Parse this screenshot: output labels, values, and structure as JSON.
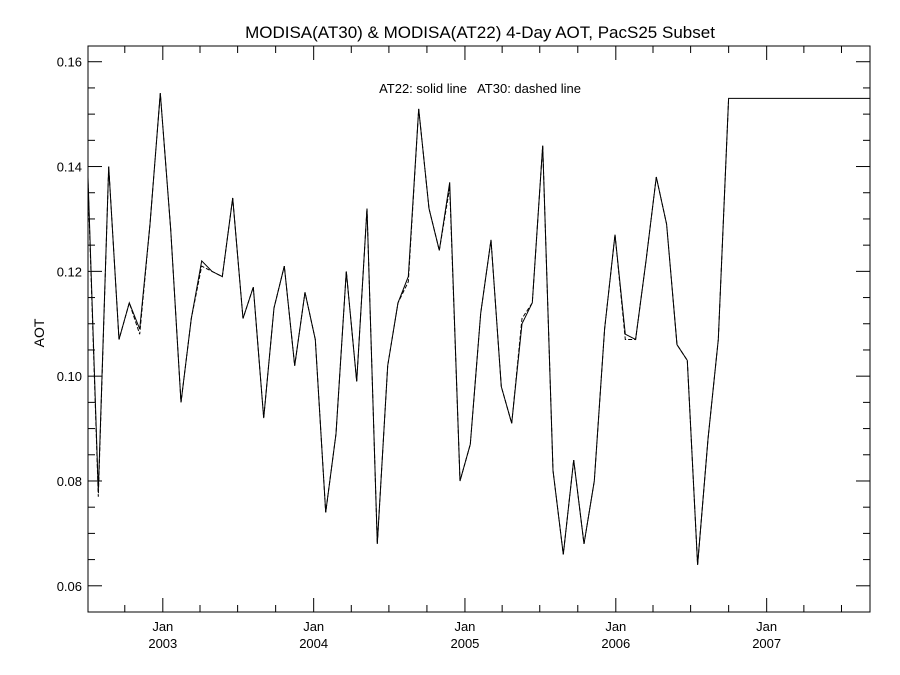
{
  "chart_data": {
    "type": "line",
    "title": "MODISA(AT30) & MODISA(AT22) 4-Day AOT, PacS25 Subset",
    "ylabel": "AOT",
    "xlabel": "",
    "annotation": "AT22: solid line   AT30: dashed line",
    "xlim": [
      "2002-07-04",
      "2007-09-08"
    ],
    "ylim": [
      0.055,
      0.163
    ],
    "y_ticks": [
      0.06,
      0.08,
      0.1,
      0.12,
      0.14,
      0.16
    ],
    "y_tick_labels": [
      "0.06",
      "0.08",
      "0.10",
      "0.12",
      "0.14",
      "0.16"
    ],
    "x_ticks": [
      {
        "date": "2003-01-01",
        "month": "Jan",
        "year": "2003"
      },
      {
        "date": "2004-01-01",
        "month": "Jan",
        "year": "2004"
      },
      {
        "date": "2005-01-01",
        "month": "Jan",
        "year": "2005"
      },
      {
        "date": "2006-01-01",
        "month": "Jan",
        "year": "2006"
      },
      {
        "date": "2007-01-01",
        "month": "Jan",
        "year": "2007"
      }
    ],
    "grid": false,
    "series": [
      {
        "name": "AT22",
        "style": "solid",
        "color": "#000000",
        "x": [
          "2002-07-04",
          "2002-07-29",
          "2002-08-23",
          "2002-09-17",
          "2002-10-12",
          "2002-11-06",
          "2002-12-01",
          "2002-12-26",
          "2003-01-20",
          "2003-02-14",
          "2003-03-11",
          "2003-04-05",
          "2003-04-30",
          "2003-05-25",
          "2003-06-19",
          "2003-07-14",
          "2003-08-08",
          "2003-09-02",
          "2003-09-27",
          "2003-10-22",
          "2003-11-16",
          "2003-12-11",
          "2004-01-05",
          "2004-01-30",
          "2004-02-24",
          "2004-03-20",
          "2004-04-14",
          "2004-05-09",
          "2004-06-03",
          "2004-06-28",
          "2004-07-23",
          "2004-08-17",
          "2004-09-11",
          "2004-10-06",
          "2004-10-31",
          "2004-11-25",
          "2004-12-20",
          "2005-01-14",
          "2005-02-08",
          "2005-03-05",
          "2005-03-30",
          "2005-04-24",
          "2005-05-19",
          "2005-06-13",
          "2005-07-08",
          "2005-08-02",
          "2005-08-27",
          "2005-09-21",
          "2005-10-16",
          "2005-11-10",
          "2005-12-05",
          "2005-12-30",
          "2006-01-24",
          "2006-02-18",
          "2006-03-15",
          "2006-04-09",
          "2006-05-04",
          "2006-05-29",
          "2006-06-23",
          "2006-07-18",
          "2006-08-12",
          "2006-09-06",
          "2006-10-01",
          "2006-10-26",
          "2006-11-20",
          "2006-12-15",
          "2007-01-09",
          "2007-02-03",
          "2007-02-28",
          "2007-03-25",
          "2007-04-19",
          "2007-05-14",
          "2007-06-08",
          "2007-07-03",
          "2007-07-28",
          "2007-08-22",
          "2007-09-08"
        ],
        "values": [
          0.138,
          0.078,
          0.14,
          0.107,
          0.114,
          0.109,
          0.129,
          0.154,
          0.128,
          0.095,
          0.111,
          0.122,
          0.12,
          0.119,
          0.134,
          0.111,
          0.117,
          0.092,
          0.113,
          0.121,
          0.102,
          0.116,
          0.107,
          0.074,
          0.089,
          0.12,
          0.099,
          0.132,
          0.068,
          0.102,
          0.114,
          0.119,
          0.151,
          0.132,
          0.124,
          0.137,
          0.08,
          0.087,
          0.112,
          0.126,
          0.098,
          0.091,
          0.11,
          0.114,
          0.144,
          0.082,
          0.066,
          0.084,
          0.068,
          0.08,
          0.109,
          0.127,
          0.108,
          0.107,
          0.122,
          0.138,
          0.129,
          0.106,
          0.103,
          0.064,
          0.088,
          0.107,
          0.153,
          0.153,
          0.153,
          0.153,
          0.153,
          0.153,
          0.153,
          0.153,
          0.153,
          0.153,
          0.153,
          0.153,
          0.153,
          0.153,
          0.153
        ]
      },
      {
        "name": "AT30",
        "style": "dashed",
        "color": "#000000",
        "x": [
          "2002-07-04",
          "2002-07-29",
          "2002-08-23",
          "2002-09-17",
          "2002-10-12",
          "2002-11-06",
          "2002-12-01",
          "2002-12-26",
          "2003-01-20",
          "2003-02-14",
          "2003-03-11",
          "2003-04-05",
          "2003-04-30",
          "2003-05-25",
          "2003-06-19",
          "2003-07-14",
          "2003-08-08",
          "2003-09-02",
          "2003-09-27",
          "2003-10-22",
          "2003-11-16",
          "2003-12-11",
          "2004-01-05",
          "2004-01-30",
          "2004-02-24",
          "2004-03-20",
          "2004-04-14",
          "2004-05-09",
          "2004-06-03",
          "2004-06-28",
          "2004-07-23",
          "2004-08-17",
          "2004-09-11",
          "2004-10-06",
          "2004-10-31",
          "2004-11-25",
          "2004-12-20",
          "2005-01-14",
          "2005-02-08",
          "2005-03-05",
          "2005-03-30",
          "2005-04-24",
          "2005-05-19",
          "2005-06-13",
          "2005-07-08",
          "2005-08-02",
          "2005-08-27",
          "2005-09-21",
          "2005-10-16",
          "2005-11-10",
          "2005-12-05",
          "2005-12-30",
          "2006-01-24",
          "2006-02-18",
          "2006-03-15",
          "2006-04-09",
          "2006-05-04",
          "2006-05-29",
          "2006-06-23",
          "2006-07-18",
          "2006-08-12",
          "2006-09-06",
          "2006-10-01"
        ],
        "values": [
          0.137,
          0.077,
          0.14,
          0.107,
          0.114,
          0.108,
          0.129,
          0.154,
          0.128,
          0.095,
          0.111,
          0.121,
          0.12,
          0.119,
          0.134,
          0.111,
          0.117,
          0.092,
          0.113,
          0.121,
          0.102,
          0.116,
          0.107,
          0.074,
          0.089,
          0.12,
          0.099,
          0.132,
          0.068,
          0.102,
          0.114,
          0.118,
          0.151,
          0.132,
          0.124,
          0.136,
          0.08,
          0.087,
          0.112,
          0.126,
          0.098,
          0.091,
          0.111,
          0.114,
          0.144,
          0.082,
          0.066,
          0.084,
          0.068,
          0.08,
          0.109,
          0.127,
          0.107,
          0.107,
          0.122,
          0.138,
          0.129,
          0.106,
          0.103,
          0.064,
          0.088,
          0.107,
          0.153
        ]
      }
    ]
  }
}
